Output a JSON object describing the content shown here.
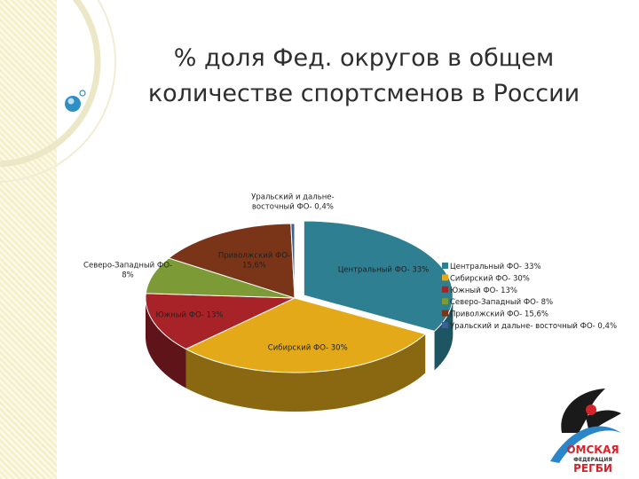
{
  "slide": {
    "title_line1": "% доля Фед. округов в общем",
    "title_line2": "количестве спортсменов в России"
  },
  "chart_data": {
    "type": "pie",
    "title": "% доля Фед. округов в общем количестве спортсменов в России",
    "categories": [
      "Центральный ФО",
      "Сибирский ФО",
      "Южный ФО",
      "Северо-Западный ФО",
      "Приволжский ФО",
      "Уральский и дальне- восточный ФО"
    ],
    "values": [
      33,
      30,
      13,
      8,
      15.6,
      0.4
    ],
    "colors": [
      "#2e7f92",
      "#e3a919",
      "#a82328",
      "#7c9a36",
      "#7a3418",
      "#3b5f9a"
    ],
    "side_colors": [
      "#1d5562",
      "#8a6812",
      "#5e1418",
      "#4b5e20",
      "#4a1e0e",
      "#233a60"
    ],
    "data_labels": [
      [
        "Центральный ФО- 33%"
      ],
      [
        "Сибирский ФО- 30%"
      ],
      [
        "Южный ФО- 13%"
      ],
      [
        "Северо-Западный ФО-",
        "8%"
      ],
      [
        "Приволжский ФО-",
        "15,6%"
      ],
      [
        "Уральский и дальне-",
        "восточный ФО- 0,4%"
      ]
    ],
    "legend": [
      "Центральный ФО- 33%",
      "Сибирский ФО- 30%",
      "Южный ФО- 13%",
      "Северо-Западный ФО- 8%",
      "Приволжский ФО- 15,6%",
      "Уральский и дальне- восточный ФО- 0,4%"
    ],
    "legend_position": "right",
    "exploded": [
      "Центральный ФО"
    ]
  },
  "logo": {
    "line1": "ОМСКАЯ",
    "line2": "ФЕДЕРАЦИЯ",
    "line3": "РЕГБИ"
  }
}
